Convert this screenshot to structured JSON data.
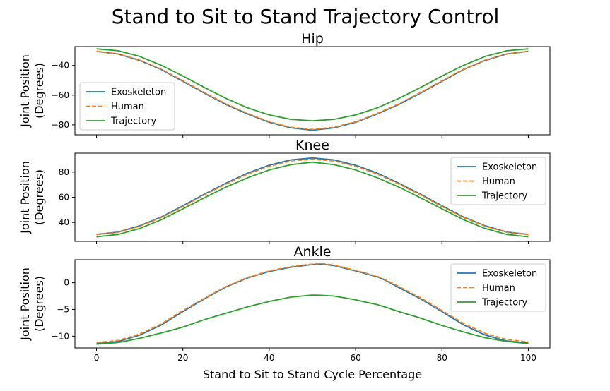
{
  "figure": {
    "suptitle": "Stand to Sit to Stand Trajectory Control",
    "xlabel": "Stand to Sit to Stand Cycle Percentage",
    "series_colors": {
      "Exoskeleton": "#1f77b4",
      "Human": "#ff7f0e",
      "Trajectory": "#2ca02c"
    }
  },
  "chart_data": [
    {
      "type": "line",
      "title": "Hip",
      "xlabel": "",
      "ylabel": "Joint Position\n(Degrees)",
      "xlim": [
        -5,
        105
      ],
      "ylim": [
        -86.7,
        -27.3
      ],
      "xticks": [
        0,
        20,
        40,
        60,
        80,
        100
      ],
      "xtick_labels_visible": false,
      "yticks": [
        -40,
        -60,
        -80
      ],
      "legend_position": "center-left",
      "x": [
        0,
        5,
        10,
        15,
        20,
        25,
        30,
        35,
        40,
        45,
        50,
        55,
        60,
        65,
        70,
        75,
        80,
        85,
        90,
        95,
        100
      ],
      "series": [
        {
          "name": "Exoskeleton",
          "style": "solid",
          "values": [
            -30.5,
            -32.3,
            -36.6,
            -42.8,
            -50.7,
            -58.7,
            -66.3,
            -72.7,
            -78.3,
            -82.0,
            -83.6,
            -82.0,
            -78.3,
            -72.7,
            -66.3,
            -58.7,
            -50.7,
            -42.8,
            -36.6,
            -32.3,
            -30.5
          ]
        },
        {
          "name": "Human",
          "style": "dashed",
          "values": [
            -30.5,
            -32.2,
            -36.4,
            -42.5,
            -50.3,
            -58.3,
            -65.9,
            -72.3,
            -77.9,
            -81.6,
            -83.1,
            -81.6,
            -77.9,
            -72.3,
            -65.9,
            -58.3,
            -50.3,
            -42.5,
            -36.4,
            -32.2,
            -30.5
          ]
        },
        {
          "name": "Trajectory",
          "style": "solid",
          "values": [
            -28.8,
            -30.1,
            -33.9,
            -39.9,
            -47.1,
            -54.9,
            -62.2,
            -68.6,
            -73.3,
            -76.3,
            -77.3,
            -76.3,
            -73.3,
            -68.6,
            -62.2,
            -54.9,
            -47.1,
            -39.9,
            -33.9,
            -30.1,
            -28.8
          ]
        }
      ]
    },
    {
      "type": "line",
      "title": "Knee",
      "xlabel": "",
      "ylabel": "Joint Position\n(Degrees)",
      "xlim": [
        -5,
        105
      ],
      "ylim": [
        25.0,
        95.0
      ],
      "xticks": [
        0,
        20,
        40,
        60,
        80,
        100
      ],
      "xtick_labels_visible": false,
      "yticks": [
        40,
        60,
        80
      ],
      "legend_position": "top-right",
      "x": [
        0,
        5,
        10,
        15,
        20,
        25,
        30,
        35,
        40,
        45,
        50,
        55,
        60,
        65,
        70,
        75,
        80,
        85,
        90,
        95,
        100
      ],
      "series": [
        {
          "name": "Exoskeleton",
          "style": "solid",
          "values": [
            30.5,
            32.4,
            37.4,
            44.4,
            53.2,
            62.5,
            71.2,
            79.2,
            85.4,
            89.7,
            91.2,
            89.7,
            85.4,
            79.2,
            71.2,
            62.5,
            53.2,
            44.4,
            37.4,
            32.4,
            30.5
          ]
        },
        {
          "name": "Human",
          "style": "dashed",
          "values": [
            30.3,
            32.1,
            37.0,
            43.9,
            52.6,
            61.9,
            70.5,
            78.4,
            84.6,
            88.8,
            90.3,
            88.8,
            84.6,
            78.4,
            70.5,
            61.9,
            52.6,
            43.9,
            37.0,
            32.1,
            30.3
          ]
        },
        {
          "name": "Trajectory",
          "style": "solid",
          "values": [
            28.6,
            30.5,
            35.2,
            42.2,
            50.8,
            59.6,
            68.1,
            75.5,
            81.7,
            85.9,
            87.9,
            85.9,
            81.7,
            75.5,
            68.1,
            59.6,
            50.8,
            42.2,
            35.2,
            30.5,
            28.6
          ]
        }
      ]
    },
    {
      "type": "line",
      "title": "Ankle",
      "xlabel": "Stand to Sit to Stand Cycle Percentage",
      "ylabel": "Joint Position\n(Degrees)",
      "xlim": [
        -5,
        105
      ],
      "ylim": [
        -12.2,
        4.3
      ],
      "xticks": [
        0,
        20,
        40,
        60,
        80,
        100
      ],
      "xtick_labels_visible": true,
      "yticks": [
        0,
        -5,
        -10
      ],
      "legend_position": "top-right",
      "x": [
        0,
        5,
        10,
        15,
        20,
        25,
        30,
        35,
        40,
        45,
        50,
        52,
        55,
        60,
        65,
        67,
        70,
        75,
        80,
        85,
        90,
        95,
        100
      ],
      "series": [
        {
          "name": "Exoskeleton",
          "style": "solid",
          "values": [
            -11.4,
            -11.0,
            -9.8,
            -7.9,
            -5.4,
            -3.0,
            -0.8,
            0.9,
            2.1,
            2.9,
            3.4,
            3.5,
            3.2,
            2.2,
            1.1,
            0.4,
            -0.9,
            -3.0,
            -5.4,
            -7.9,
            -9.8,
            -10.9,
            -11.3
          ]
        },
        {
          "name": "Human",
          "style": "dashed",
          "values": [
            -11.2,
            -10.8,
            -9.6,
            -7.7,
            -5.2,
            -2.9,
            -0.7,
            1.0,
            2.2,
            3.0,
            3.5,
            3.6,
            3.3,
            2.3,
            1.2,
            0.5,
            -0.7,
            -2.8,
            -5.2,
            -7.6,
            -9.5,
            -10.6,
            -11.1
          ]
        },
        {
          "name": "Trajectory",
          "style": "solid",
          "values": [
            -11.5,
            -11.2,
            -10.4,
            -9.4,
            -8.3,
            -6.9,
            -5.7,
            -4.5,
            -3.5,
            -2.7,
            -2.3,
            -2.35,
            -2.5,
            -3.2,
            -4.1,
            -4.6,
            -5.4,
            -6.6,
            -8.0,
            -9.2,
            -10.3,
            -11.0,
            -11.4
          ]
        }
      ]
    }
  ]
}
